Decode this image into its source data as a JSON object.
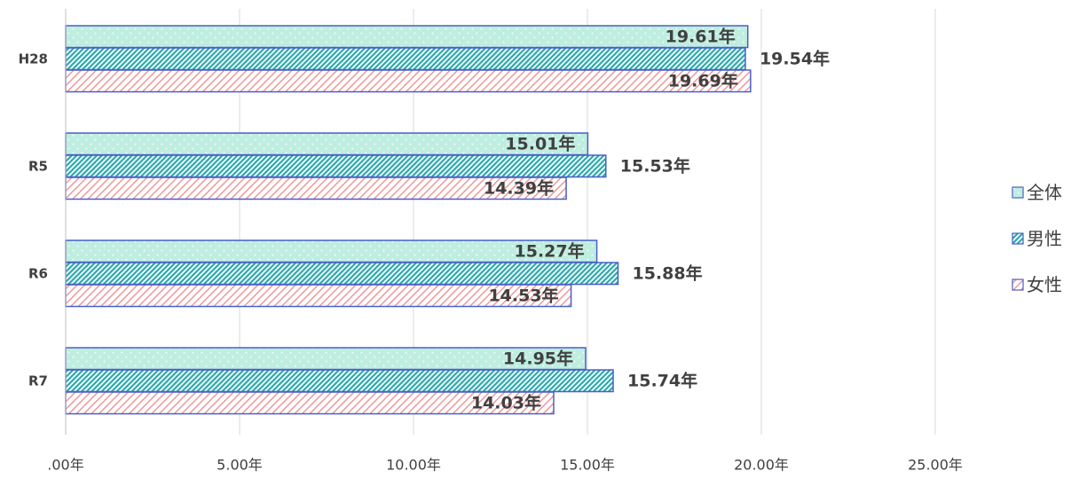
{
  "chart_data": {
    "type": "bar",
    "orientation": "horizontal",
    "categories": [
      "H28",
      "R5",
      "R6",
      "R7"
    ],
    "series": [
      {
        "name": "全体",
        "values": [
          19.61,
          15.01,
          15.27,
          14.95
        ],
        "labels": [
          "19.61年",
          "15.01年",
          "15.27年",
          "14.95年"
        ],
        "color": "#bfeee0",
        "border": "#4a5ec9",
        "pattern": "dots"
      },
      {
        "name": "男性",
        "values": [
          19.54,
          15.53,
          15.88,
          15.74
        ],
        "labels": [
          "19.54年",
          "15.53年",
          "15.88年",
          "15.74年"
        ],
        "color": "#2bb3b3",
        "border": "#4a5ec9",
        "pattern": "dense-diagonal"
      },
      {
        "name": "女性",
        "values": [
          19.69,
          14.39,
          14.53,
          14.03
        ],
        "labels": [
          "19.69年",
          "14.39年",
          "14.53年",
          "14.03年"
        ],
        "color": "#ee8a8a",
        "border": "#4a5ec9",
        "pattern": "light-diagonal"
      }
    ],
    "x_ticks": [
      0,
      5,
      10,
      15,
      20,
      25
    ],
    "x_tick_labels": [
      ".00年",
      "5.00年",
      "10.00年",
      "15.00年",
      "20.00年",
      "25.00年"
    ],
    "xlim": [
      0,
      25
    ],
    "grid": true,
    "legend": "right",
    "title": "",
    "xlabel": "",
    "ylabel": ""
  }
}
